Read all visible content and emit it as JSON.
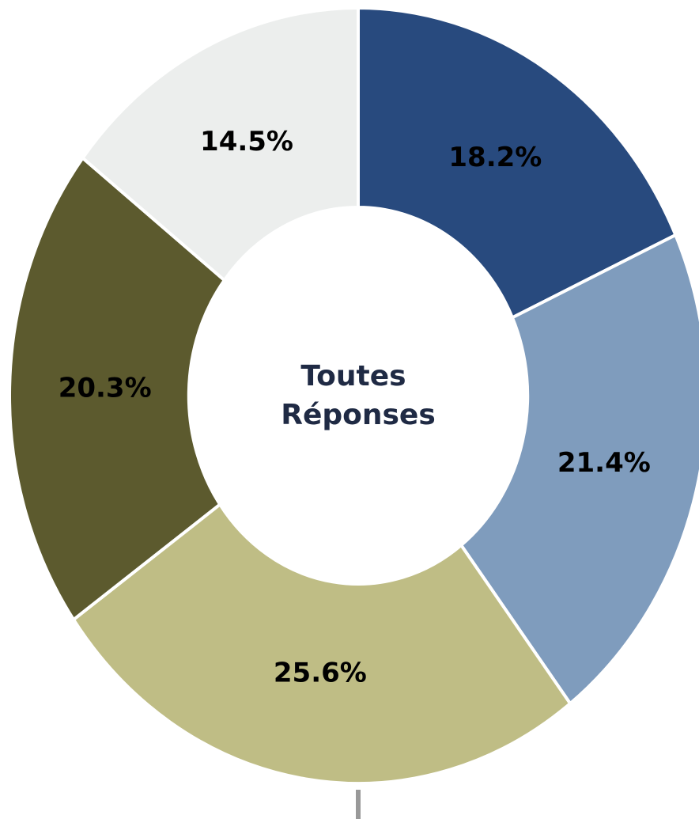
{
  "chart_data": {
    "type": "donut",
    "center_label": [
      "Toutes",
      "Réponses"
    ],
    "values": [
      18.2,
      21.4,
      25.6,
      20.3,
      14.5
    ],
    "value_labels": [
      "18.2%",
      "21.4%",
      "25.6%",
      "20.3%",
      "14.5%"
    ],
    "colors": [
      "#284a7e",
      "#7f9cbd",
      "#bfbd85",
      "#5c5a2e",
      "#eceeed"
    ]
  }
}
